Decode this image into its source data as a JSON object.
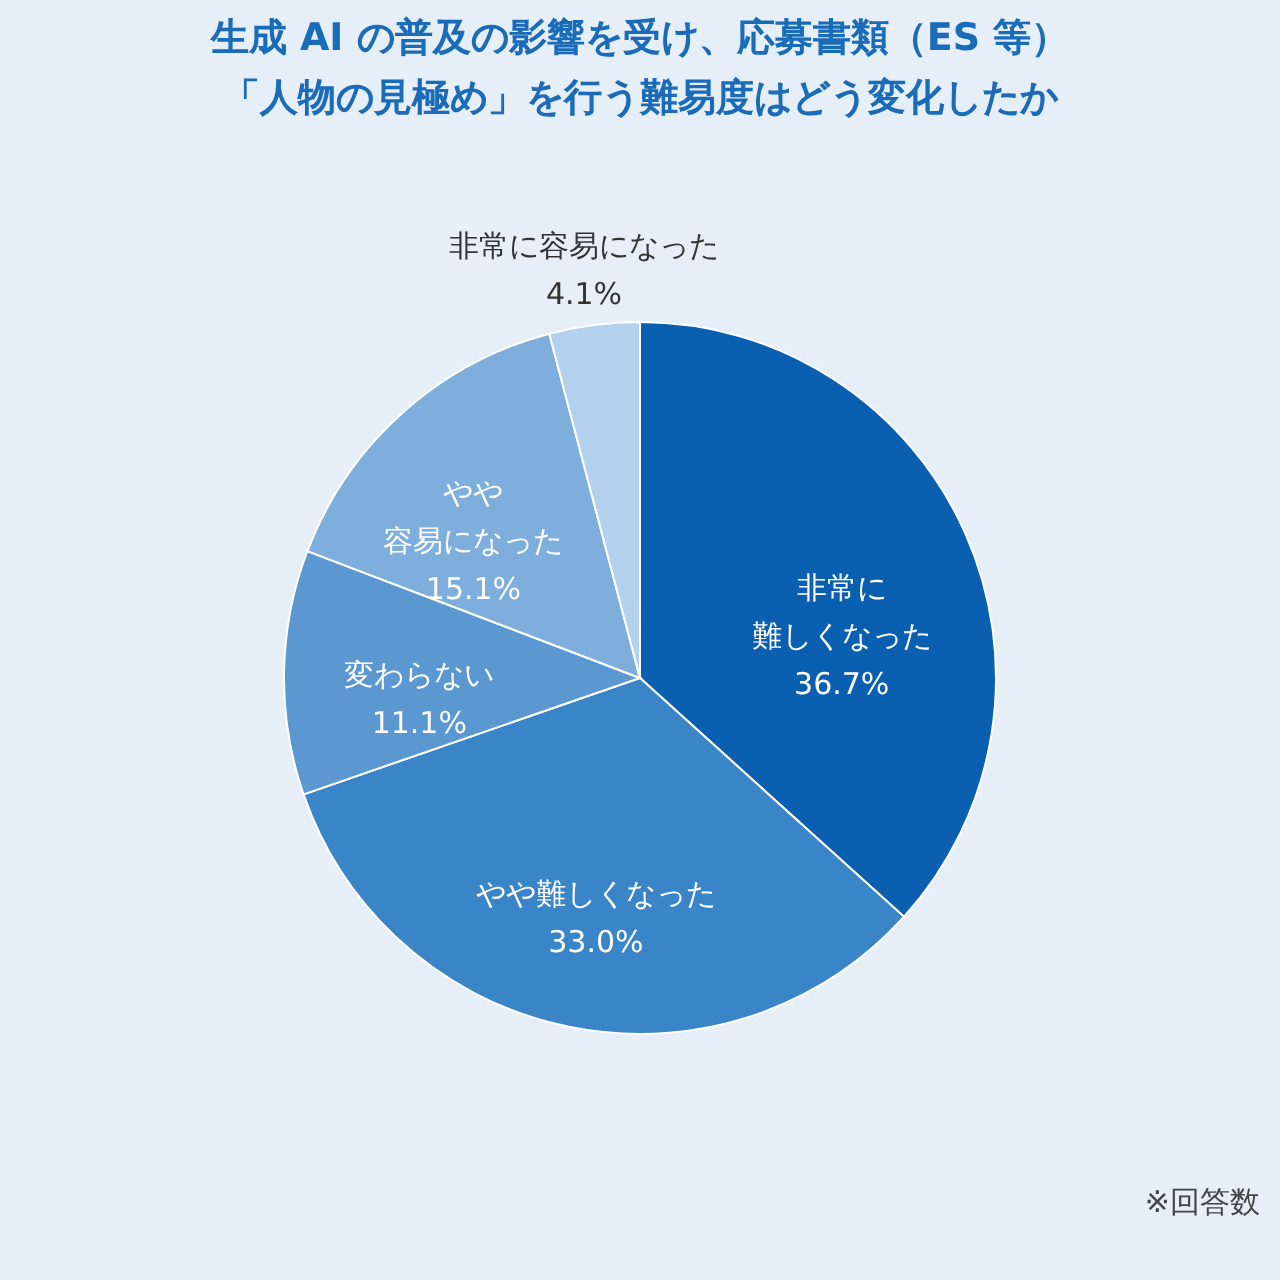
{
  "chart_data": {
    "type": "pie",
    "title": [
      "生成 AI の普及の影響を受け、応募書類（ES 等）",
      "「人物の見極め」を行う難易度はどう変化したか"
    ],
    "categories": [
      "非常に難しくなった",
      "やや難しくなった",
      "変わらない",
      "やや容易になった",
      "非常に容易になった"
    ],
    "values": [
      36.7,
      33.0,
      11.1,
      15.1,
      4.1
    ],
    "colors": [
      "#0a5fb0",
      "#3a85c8",
      "#5b97d0",
      "#7eaedb",
      "#b3d0ec"
    ],
    "value_labels": [
      "36.7%",
      "33.0%",
      "11.1%",
      "15.1%",
      "4.1%"
    ],
    "annotations": [
      "※回答数"
    ],
    "legend": false
  }
}
